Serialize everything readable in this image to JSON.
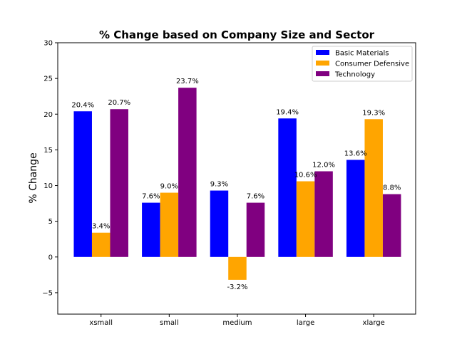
{
  "chart_data": {
    "type": "bar",
    "title": "% Change based on Company Size and Sector",
    "xlabel": "",
    "ylabel": "% Change",
    "categories": [
      "xsmall",
      "small",
      "medium",
      "large",
      "xlarge"
    ],
    "ylim": [
      -8,
      30
    ],
    "yticks": [
      -5,
      0,
      5,
      10,
      15,
      20,
      25,
      30
    ],
    "ytick_labels": [
      "−5",
      "0",
      "5",
      "10",
      "15",
      "20",
      "25",
      "30"
    ],
    "grid": false,
    "legend_position": "top-right",
    "series": [
      {
        "name": "Basic Materials",
        "color": "#0000ff",
        "values": [
          20.4,
          7.6,
          9.3,
          19.4,
          13.6
        ],
        "labels": [
          "20.4%",
          "7.6%",
          "9.3%",
          "19.4%",
          "13.6%"
        ]
      },
      {
        "name": "Consumer Defensive",
        "color": "#ffa500",
        "values": [
          3.4,
          9.0,
          -3.2,
          10.6,
          19.3
        ],
        "labels": [
          "3.4%",
          "9.0%",
          "-3.2%",
          "10.6%",
          "19.3%"
        ]
      },
      {
        "name": "Technology",
        "color": "#800080",
        "values": [
          20.7,
          23.7,
          7.6,
          12.0,
          8.8
        ],
        "labels": [
          "20.7%",
          "23.7%",
          "7.6%",
          "12.0%",
          "8.8%"
        ]
      }
    ]
  }
}
